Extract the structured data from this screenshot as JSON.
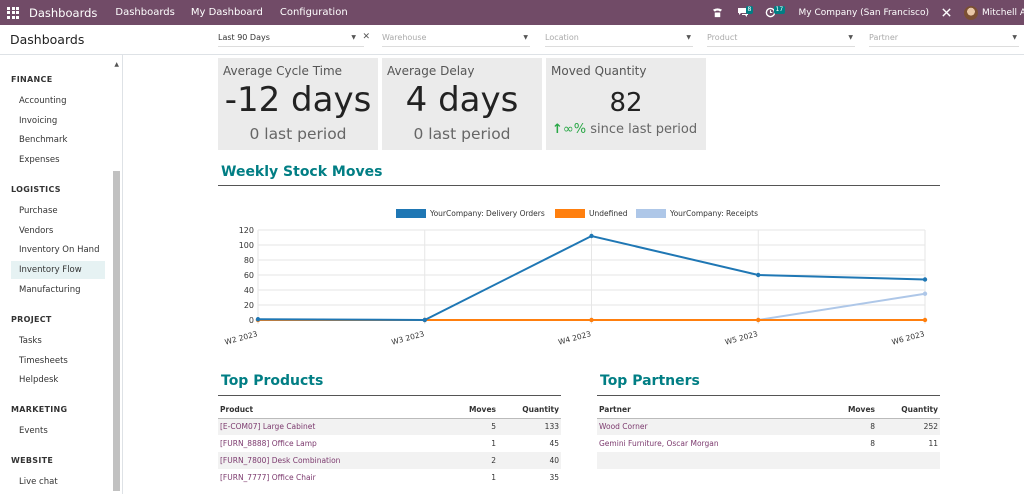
{
  "navbar": {
    "brand": "Dashboards",
    "menu": [
      "Dashboards",
      "My Dashboard",
      "Configuration"
    ],
    "chat_badge": "8",
    "activity_badge": "17",
    "company": "My Company (San Francisco)",
    "user": "Mitchell Admin"
  },
  "control_panel": {
    "title": "Dashboards",
    "filters": {
      "period": "Last 90 Days",
      "warehouse": "Warehouse",
      "location": "Location",
      "product": "Product",
      "partner": "Partner"
    }
  },
  "sidebar": {
    "sections": [
      {
        "title": "FINANCE",
        "items": [
          "Accounting",
          "Invoicing",
          "Benchmark",
          "Expenses"
        ]
      },
      {
        "title": "LOGISTICS",
        "items": [
          "Purchase",
          "Vendors",
          "Inventory On Hand",
          "Inventory Flow",
          "Manufacturing"
        ]
      },
      {
        "title": "PROJECT",
        "items": [
          "Tasks",
          "Timesheets",
          "Helpdesk"
        ]
      },
      {
        "title": "MARKETING",
        "items": [
          "Events"
        ]
      },
      {
        "title": "WEBSITE",
        "items": [
          "Live chat"
        ]
      }
    ],
    "active_item": "Inventory Flow"
  },
  "kpis": [
    {
      "label": "Average Cycle Time",
      "value": "-12 days",
      "previous": "0 last period"
    },
    {
      "label": "Average Delay",
      "value": "4 days",
      "previous": "0 last period"
    },
    {
      "label": "Moved Quantity",
      "value": "82",
      "trend_arrow": "↑",
      "trend_pct": "∞%",
      "trend_text": "since last period"
    }
  ],
  "weekly_stock_moves": {
    "title": "Weekly Stock Moves"
  },
  "chart_data": {
    "type": "line",
    "categories": [
      "W2 2023",
      "W3 2023",
      "W4 2023",
      "W5 2023",
      "W6 2023"
    ],
    "ylim": [
      0,
      120
    ],
    "yticks": [
      0,
      20,
      40,
      60,
      80,
      100,
      120
    ],
    "grid": true,
    "legend_position": "top",
    "series": [
      {
        "name": "YourCompany: Delivery Orders",
        "color": "#1f77b4",
        "values": [
          1,
          0,
          112,
          60,
          54
        ]
      },
      {
        "name": "Undefined",
        "color": "#ff7f0e",
        "values": [
          0,
          0,
          0,
          0,
          0
        ]
      },
      {
        "name": "YourCompany: Receipts",
        "color": "#aec7e8",
        "values": [
          0,
          0,
          0,
          0,
          35
        ]
      }
    ]
  },
  "top_products": {
    "title": "Top Products",
    "columns": [
      "Product",
      "Moves",
      "Quantity"
    ],
    "rows": [
      [
        "[E-COM07] Large Cabinet",
        "5",
        "133"
      ],
      [
        "[FURN_8888] Office Lamp",
        "1",
        "45"
      ],
      [
        "[FURN_7800] Desk Combination",
        "2",
        "40"
      ],
      [
        "[FURN_7777] Office Chair",
        "1",
        "35"
      ]
    ]
  },
  "top_partners": {
    "title": "Top Partners",
    "columns": [
      "Partner",
      "Moves",
      "Quantity"
    ],
    "rows": [
      [
        "Wood Corner",
        "8",
        "252"
      ],
      [
        "Gemini Furniture, Oscar Morgan",
        "8",
        "11"
      ],
      [
        "",
        "",
        ""
      ]
    ]
  }
}
